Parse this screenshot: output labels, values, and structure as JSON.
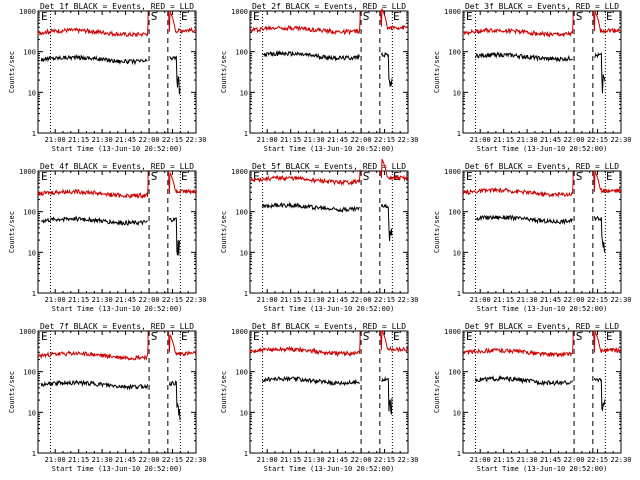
{
  "chart_data": [
    {
      "type": "line",
      "title": "Det 1f BLACK = Events, RED = LLD",
      "xlabel": "Start Time (13-Jun-10 20:52:00)",
      "ylabel": "Counts/sec",
      "yscale": "log",
      "ylim": [
        1,
        1000
      ],
      "xlim_min_after_start": [
        -3,
        98
      ],
      "x_tick_labels": [
        "21:00",
        "21:15",
        "21:30",
        "21:45",
        "22:00",
        "22:15",
        "22:30"
      ],
      "y_tick_labels": [
        "1",
        "10",
        "100",
        "1000"
      ],
      "markers": {
        "dotted_min": [
          5,
          88
        ],
        "dashed_min": [
          68,
          80
        ],
        "labels": [
          "S",
          "E"
        ]
      },
      "series": [
        {
          "color": "#000000",
          "level": 65,
          "window": [
            -1,
            88
          ]
        },
        {
          "color": "#cc0000",
          "level": 300,
          "window": [
            -3,
            98
          ]
        }
      ]
    },
    {
      "type": "line",
      "title": "Det 2f BLACK = Events, RED = LLD",
      "xlabel": "Start Time (13-Jun-10 20:52:00)",
      "ylabel": "Counts/sec",
      "yscale": "log",
      "ylim": [
        1,
        1000
      ],
      "xlim_min_after_start": [
        -3,
        98
      ],
      "x_tick_labels": [
        "21:00",
        "21:15",
        "21:30",
        "21:45",
        "22:00",
        "22:15",
        "22:30"
      ],
      "y_tick_labels": [
        "1",
        "10",
        "100",
        "1000"
      ],
      "markers": {
        "dotted_min": [
          5,
          88
        ],
        "dashed_min": [
          68,
          80
        ],
        "labels": [
          "S",
          "E"
        ]
      },
      "series": [
        {
          "color": "#000000",
          "level": 80,
          "window": [
            5,
            88
          ]
        },
        {
          "color": "#cc0000",
          "level": 350,
          "window": [
            -3,
            98
          ]
        }
      ]
    },
    {
      "type": "line",
      "title": "Det 3f BLACK = Events, RED = LLD",
      "xlabel": "Start Time (13-Jun-10 20:52:00)",
      "ylabel": "Counts/sec",
      "yscale": "log",
      "ylim": [
        1,
        1000
      ],
      "xlim_min_after_start": [
        -3,
        98
      ],
      "x_tick_labels": [
        "21:00",
        "21:15",
        "21:30",
        "21:45",
        "22:00",
        "22:15",
        "22:30"
      ],
      "y_tick_labels": [
        "1",
        "10",
        "100",
        "1000"
      ],
      "markers": {
        "dotted_min": [
          5,
          88
        ],
        "dashed_min": [
          68,
          80
        ],
        "labels": [
          "S",
          "E"
        ]
      },
      "series": [
        {
          "color": "#000000",
          "level": 75,
          "window": [
            5,
            88
          ]
        },
        {
          "color": "#cc0000",
          "level": 300,
          "window": [
            -3,
            98
          ]
        }
      ]
    },
    {
      "type": "line",
      "title": "Det 4f BLACK = Events, RED = LLD",
      "xlabel": "Start Time (13-Jun-10 20:52:00)",
      "ylabel": "Counts/sec",
      "yscale": "log",
      "ylim": [
        1,
        1000
      ],
      "xlim_min_after_start": [
        -3,
        98
      ],
      "x_tick_labels": [
        "21:00",
        "21:15",
        "21:30",
        "21:45",
        "22:00",
        "22:15",
        "22:30"
      ],
      "y_tick_labels": [
        "1",
        "10",
        "100",
        "1000"
      ],
      "markers": {
        "dotted_min": [
          5,
          88
        ],
        "dashed_min": [
          68,
          80
        ],
        "labels": [
          "S",
          "E"
        ]
      },
      "series": [
        {
          "color": "#000000",
          "level": 60,
          "window": [
            -1,
            88
          ]
        },
        {
          "color": "#cc0000",
          "level": 280,
          "window": [
            -3,
            98
          ]
        }
      ]
    },
    {
      "type": "line",
      "title": "Det 5f BLACK = Events, RED = LLD",
      "xlabel": "Start Time (13-Jun-10 20:52:00)",
      "ylabel": "Counts/sec",
      "yscale": "log",
      "ylim": [
        1,
        1000
      ],
      "xlim_min_after_start": [
        -3,
        98
      ],
      "x_tick_labels": [
        "21:00",
        "21:15",
        "21:30",
        "21:45",
        "22:00",
        "22:15",
        "22:30"
      ],
      "y_tick_labels": [
        "1",
        "10",
        "100",
        "1000"
      ],
      "markers": {
        "dotted_min": [
          5,
          88
        ],
        "dashed_min": [
          68,
          80
        ],
        "labels": [
          "S",
          "E"
        ]
      },
      "series": [
        {
          "color": "#000000",
          "level": 130,
          "window": [
            5,
            88
          ]
        },
        {
          "color": "#cc0000",
          "level": 600,
          "window": [
            -3,
            98
          ]
        }
      ]
    },
    {
      "type": "line",
      "title": "Det 6f BLACK = Events, RED = LLD",
      "xlabel": "Start Time (13-Jun-10 20:52:00)",
      "ylabel": "Counts/sec",
      "yscale": "log",
      "ylim": [
        1,
        1000
      ],
      "xlim_min_after_start": [
        -3,
        98
      ],
      "x_tick_labels": [
        "21:00",
        "21:15",
        "21:30",
        "21:45",
        "22:00",
        "22:15",
        "22:30"
      ],
      "y_tick_labels": [
        "1",
        "10",
        "100",
        "1000"
      ],
      "markers": {
        "dotted_min": [
          5,
          88
        ],
        "dashed_min": [
          68,
          80
        ],
        "labels": [
          "S",
          "E"
        ]
      },
      "series": [
        {
          "color": "#000000",
          "level": 65,
          "window": [
            5,
            88
          ]
        },
        {
          "color": "#cc0000",
          "level": 300,
          "window": [
            -3,
            98
          ]
        }
      ]
    },
    {
      "type": "line",
      "title": "Det 7f BLACK = Events, RED = LLD",
      "xlabel": "Start Time (13-Jun-10 20:52:00)",
      "ylabel": "Counts/sec",
      "yscale": "log",
      "ylim": [
        1,
        1000
      ],
      "xlim_min_after_start": [
        -3,
        98
      ],
      "x_tick_labels": [
        "21:00",
        "21:15",
        "21:30",
        "21:45",
        "22:00",
        "22:15",
        "22:30"
      ],
      "y_tick_labels": [
        "1",
        "10",
        "100",
        "1000"
      ],
      "markers": {
        "dotted_min": [
          5,
          88
        ],
        "dashed_min": [
          68,
          80
        ],
        "labels": [
          "S",
          "E"
        ]
      },
      "series": [
        {
          "color": "#000000",
          "level": 48,
          "window": [
            -1,
            88
          ]
        },
        {
          "color": "#cc0000",
          "level": 250,
          "window": [
            -3,
            98
          ]
        }
      ]
    },
    {
      "type": "line",
      "title": "Det 8f BLACK = Events, RED = LLD",
      "xlabel": "Start Time (13-Jun-10 20:52:00)",
      "ylabel": "Counts/sec",
      "yscale": "log",
      "ylim": [
        1,
        1000
      ],
      "xlim_min_after_start": [
        -3,
        98
      ],
      "x_tick_labels": [
        "21:00",
        "21:15",
        "21:30",
        "21:45",
        "22:00",
        "22:15",
        "22:30"
      ],
      "y_tick_labels": [
        "1",
        "10",
        "100",
        "1000"
      ],
      "markers": {
        "dotted_min": [
          5,
          88
        ],
        "dashed_min": [
          68,
          80
        ],
        "labels": [
          "S",
          "E"
        ]
      },
      "series": [
        {
          "color": "#000000",
          "level": 60,
          "window": [
            5,
            88
          ]
        },
        {
          "color": "#cc0000",
          "level": 320,
          "window": [
            -3,
            98
          ]
        }
      ]
    },
    {
      "type": "line",
      "title": "Det 9f BLACK = Events, RED = LLD",
      "xlabel": "Start Time (13-Jun-10 20:52:00)",
      "ylabel": "Counts/sec",
      "yscale": "log",
      "ylim": [
        1,
        1000
      ],
      "xlim_min_after_start": [
        -3,
        98
      ],
      "x_tick_labels": [
        "21:00",
        "21:15",
        "21:30",
        "21:45",
        "22:00",
        "22:15",
        "22:30"
      ],
      "y_tick_labels": [
        "1",
        "10",
        "100",
        "1000"
      ],
      "markers": {
        "dotted_min": [
          5,
          88
        ],
        "dashed_min": [
          68,
          80
        ],
        "labels": [
          "S",
          "E"
        ]
      },
      "series": [
        {
          "color": "#000000",
          "level": 60,
          "window": [
            5,
            88
          ]
        },
        {
          "color": "#cc0000",
          "level": 300,
          "window": [
            -3,
            98
          ]
        }
      ]
    }
  ]
}
